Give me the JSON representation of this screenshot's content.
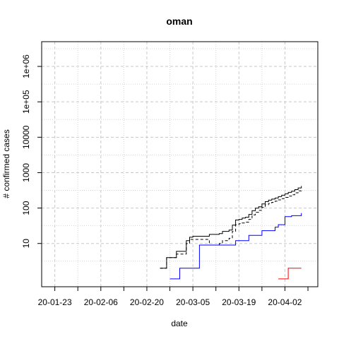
{
  "chart_data": {
    "type": "line",
    "title": "oman",
    "xlabel": "date",
    "ylabel": "# confirmed cases",
    "y_scale": "log",
    "ylim": [
      0.6,
      5000000
    ],
    "xlim": [
      "2020-01-19",
      "2020-04-12"
    ],
    "grid": true,
    "x_ticks": [
      {
        "date": "2020-01-23",
        "label": "20-01-23"
      },
      {
        "date": "2020-02-06",
        "label": "20-02-06"
      },
      {
        "date": "2020-02-20",
        "label": "20-02-20"
      },
      {
        "date": "2020-03-05",
        "label": "20-03-05"
      },
      {
        "date": "2020-03-19",
        "label": "20-03-19"
      },
      {
        "date": "2020-04-02",
        "label": "20-04-02"
      }
    ],
    "y_ticks": [
      {
        "value": 10,
        "label": "10"
      },
      {
        "value": 100,
        "label": "100"
      },
      {
        "value": 1000,
        "label": "1000"
      },
      {
        "value": 10000,
        "label": "10000"
      },
      {
        "value": 100000,
        "label": "1e+05"
      },
      {
        "value": 1000000,
        "label": "1e+06"
      }
    ],
    "series": [
      {
        "color": "#000000",
        "dash": "solid",
        "points": [
          [
            "2020-02-24",
            2
          ],
          [
            "2020-02-25",
            2
          ],
          [
            "2020-02-26",
            4
          ],
          [
            "2020-02-28",
            4
          ],
          [
            "2020-02-29",
            6
          ],
          [
            "2020-03-02",
            6
          ],
          [
            "2020-03-03",
            12
          ],
          [
            "2020-03-04",
            15
          ],
          [
            "2020-03-05",
            16
          ],
          [
            "2020-03-09",
            16
          ],
          [
            "2020-03-10",
            18
          ],
          [
            "2020-03-12",
            18
          ],
          [
            "2020-03-13",
            19
          ],
          [
            "2020-03-14",
            22
          ],
          [
            "2020-03-15",
            22
          ],
          [
            "2020-03-16",
            24
          ],
          [
            "2020-03-17",
            33
          ],
          [
            "2020-03-18",
            46
          ],
          [
            "2020-03-19",
            48
          ],
          [
            "2020-03-20",
            52
          ],
          [
            "2020-03-21",
            55
          ],
          [
            "2020-03-22",
            66
          ],
          [
            "2020-03-23",
            84
          ],
          [
            "2020-03-24",
            99
          ],
          [
            "2020-03-25",
            109
          ],
          [
            "2020-03-26",
            131
          ],
          [
            "2020-03-27",
            152
          ],
          [
            "2020-03-28",
            167
          ],
          [
            "2020-03-29",
            179
          ],
          [
            "2020-03-30",
            192
          ],
          [
            "2020-03-31",
            210
          ],
          [
            "2020-04-01",
            231
          ],
          [
            "2020-04-02",
            252
          ],
          [
            "2020-04-03",
            277
          ],
          [
            "2020-04-04",
            298
          ],
          [
            "2020-04-05",
            331
          ],
          [
            "2020-04-06",
            371
          ],
          [
            "2020-04-07",
            419
          ]
        ]
      },
      {
        "color": "#000000",
        "dash": "dashed",
        "points": [
          [
            "2020-02-24",
            2
          ],
          [
            "2020-02-25",
            2
          ],
          [
            "2020-02-26",
            4
          ],
          [
            "2020-02-28",
            4
          ],
          [
            "2020-02-29",
            5
          ],
          [
            "2020-03-02",
            5
          ],
          [
            "2020-03-03",
            10
          ],
          [
            "2020-03-04",
            13
          ],
          [
            "2020-03-05",
            13
          ],
          [
            "2020-03-09",
            13
          ],
          [
            "2020-03-10",
            9
          ],
          [
            "2020-03-12",
            9
          ],
          [
            "2020-03-13",
            10
          ],
          [
            "2020-03-14",
            12
          ],
          [
            "2020-03-15",
            12
          ],
          [
            "2020-03-16",
            14
          ],
          [
            "2020-03-17",
            22
          ],
          [
            "2020-03-18",
            34
          ],
          [
            "2020-03-19",
            36
          ],
          [
            "2020-03-20",
            38
          ],
          [
            "2020-03-21",
            40
          ],
          [
            "2020-03-22",
            48
          ],
          [
            "2020-03-23",
            64
          ],
          [
            "2020-03-24",
            76
          ],
          [
            "2020-03-25",
            86
          ],
          [
            "2020-03-26",
            104
          ],
          [
            "2020-03-27",
            124
          ],
          [
            "2020-03-28",
            135
          ],
          [
            "2020-03-29",
            145
          ],
          [
            "2020-03-30",
            156
          ],
          [
            "2020-03-31",
            170
          ],
          [
            "2020-04-01",
            185
          ],
          [
            "2020-04-02",
            200
          ],
          [
            "2020-04-03",
            218
          ],
          [
            "2020-04-04",
            238
          ],
          [
            "2020-04-05",
            270
          ],
          [
            "2020-04-06",
            305
          ],
          [
            "2020-04-07",
            345
          ]
        ]
      },
      {
        "color": "#0000ff",
        "dash": "solid",
        "points": [
          [
            "2020-02-27",
            1
          ],
          [
            "2020-02-29",
            1
          ],
          [
            "2020-03-01",
            2
          ],
          [
            "2020-03-06",
            2
          ],
          [
            "2020-03-07",
            9
          ],
          [
            "2020-03-17",
            9
          ],
          [
            "2020-03-18",
            12
          ],
          [
            "2020-03-21",
            12
          ],
          [
            "2020-03-22",
            17
          ],
          [
            "2020-03-25",
            17
          ],
          [
            "2020-03-26",
            23
          ],
          [
            "2020-03-29",
            23
          ],
          [
            "2020-03-30",
            29
          ],
          [
            "2020-03-31",
            34
          ],
          [
            "2020-04-01",
            34
          ],
          [
            "2020-04-02",
            57
          ],
          [
            "2020-04-03",
            57
          ],
          [
            "2020-04-04",
            61
          ],
          [
            "2020-04-06",
            61
          ],
          [
            "2020-04-07",
            72
          ]
        ]
      },
      {
        "color": "#ff0000",
        "dash": "solid",
        "points": [
          [
            "2020-03-31",
            1
          ],
          [
            "2020-04-02",
            1
          ],
          [
            "2020-04-03",
            2
          ],
          [
            "2020-04-07",
            2
          ]
        ]
      }
    ]
  }
}
